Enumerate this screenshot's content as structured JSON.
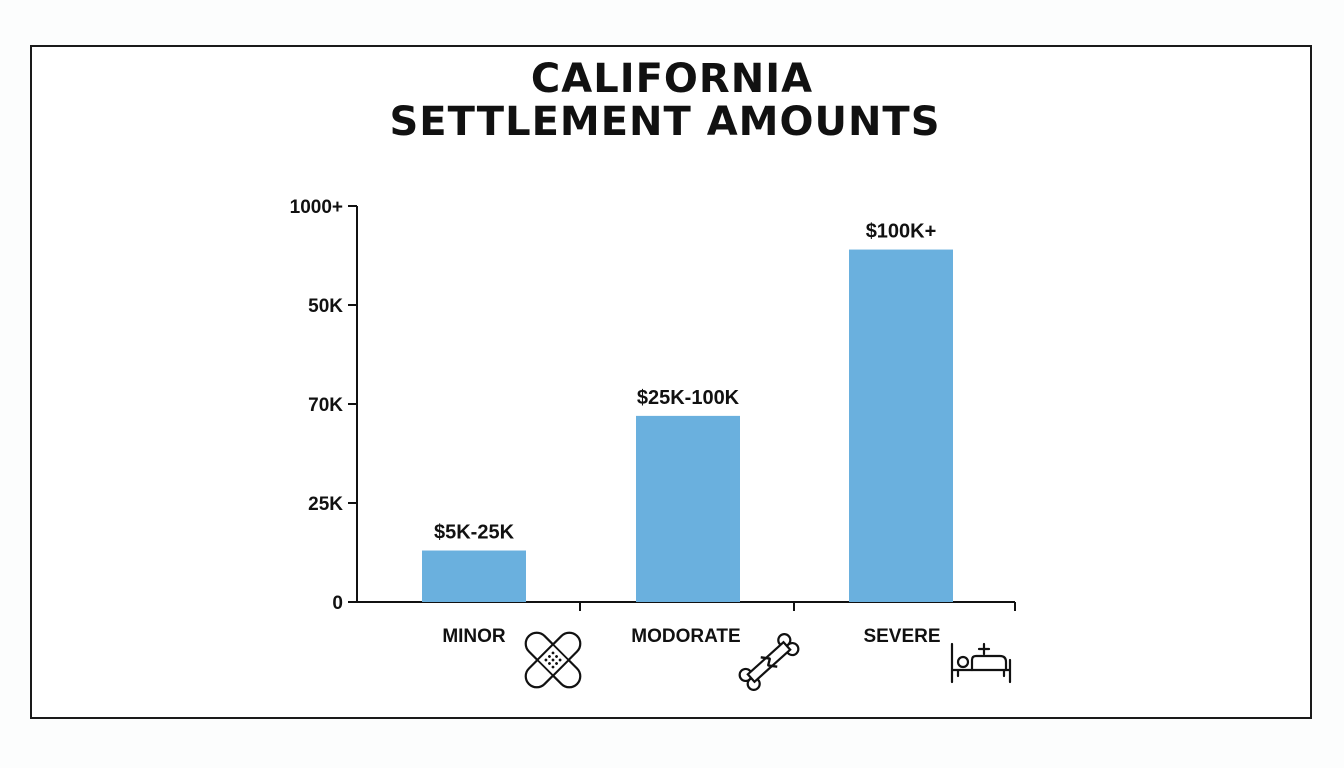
{
  "chart_data": {
    "type": "bar",
    "title_lines": [
      "CALIFORNIA",
      "SETTLEMENT AMOUNTS"
    ],
    "categories": [
      "MINOR",
      "MODORATE",
      "SEVERE"
    ],
    "category_icons": [
      "bandage-icon",
      "broken-bone-icon",
      "hospital-bed-icon"
    ],
    "values": [
      0.13,
      0.47,
      0.89
    ],
    "data_labels": [
      "$5K-25K",
      "$25K-100K",
      "$100K+"
    ],
    "y_ticks": [
      "0",
      "25K",
      "70K",
      "50K",
      "1000+"
    ],
    "ylim": [
      0,
      1
    ],
    "bar_color": "#6ab0de",
    "grid": false,
    "xlabel": "",
    "ylabel": ""
  }
}
